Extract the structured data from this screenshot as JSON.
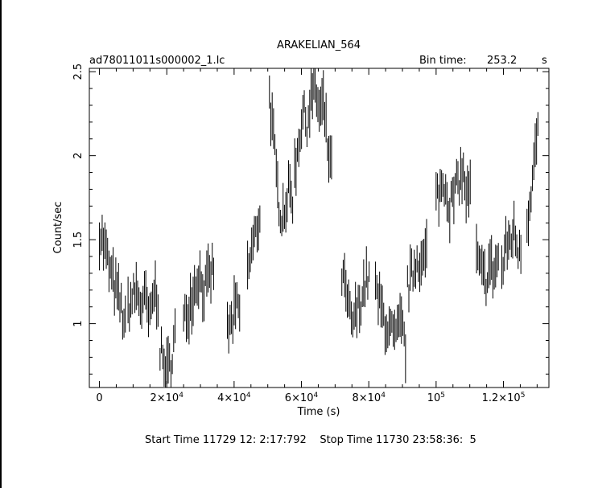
{
  "title": "ARAKELIAN_564",
  "file_name": "ad78011011s000002_1.lc",
  "bin_time_label": "Bin time:",
  "bin_time_value": "253.2",
  "bin_time_unit": "s",
  "footer": {
    "start_label": "Start Time",
    "start_value": "11729 12: 2:17:792",
    "stop_label": "Stop Time",
    "stop_value": "11730 23:58:36:  5"
  },
  "chart_data": {
    "type": "scatter",
    "style": "vertical error bars (light curve)",
    "xlabel": "Time (s)",
    "ylabel": "Count/sec",
    "xlim": [
      -3000,
      133500
    ],
    "ylim": [
      0.62,
      2.52
    ],
    "x_ticks": [
      {
        "value": 0,
        "base": "0",
        "exp": ""
      },
      {
        "value": 20000,
        "base": "2×10",
        "exp": "4"
      },
      {
        "value": 40000,
        "base": "4×10",
        "exp": "4"
      },
      {
        "value": 60000,
        "base": "6×10",
        "exp": "4"
      },
      {
        "value": 80000,
        "base": "8×10",
        "exp": "4"
      },
      {
        "value": 100000,
        "base": "10",
        "exp": "5"
      },
      {
        "value": 120000,
        "base": "1.2×10",
        "exp": "5"
      }
    ],
    "y_ticks": [
      {
        "value": 1,
        "label": "1"
      },
      {
        "value": 1.5,
        "label": "1.5"
      },
      {
        "value": 2,
        "label": "2"
      },
      {
        "value": 2.5,
        "label": "2.5"
      }
    ],
    "grid": false,
    "series": [
      {
        "segments": [
          {
            "x_start": 0,
            "x_end": 8000,
            "levels": [
              1.55,
              1.45,
              1.3,
              1.2,
              1.1,
              0.95
            ]
          },
          {
            "x_start": 8500,
            "x_end": 17500,
            "levels": [
              1.1,
              1.15,
              1.2,
              1.1,
              1.15,
              1.0,
              1.2,
              1.15
            ]
          },
          {
            "x_start": 18000,
            "x_end": 22500,
            "levels": [
              0.85,
              0.75,
              0.7,
              0.8,
              0.95
            ]
          },
          {
            "x_start": 25000,
            "x_end": 34000,
            "levels": [
              1.0,
              1.1,
              1.2,
              1.3,
              1.2,
              1.25,
              1.35
            ]
          },
          {
            "x_start": 38000,
            "x_end": 42000,
            "levels": [
              0.95,
              1.0,
              1.1,
              1.05
            ]
          },
          {
            "x_start": 44000,
            "x_end": 48000,
            "levels": [
              1.3,
              1.45,
              1.55,
              1.7
            ]
          },
          {
            "x_start": 50500,
            "x_end": 57500,
            "levels": [
              2.35,
              2.1,
              1.8,
              1.65,
              1.7,
              1.8,
              1.75
            ]
          },
          {
            "x_start": 58000,
            "x_end": 69000,
            "levels": [
              1.9,
              2.1,
              2.25,
              2.2,
              2.35,
              2.4,
              2.25,
              2.3,
              2.05,
              1.9
            ]
          },
          {
            "x_start": 72000,
            "x_end": 80500,
            "levels": [
              1.3,
              1.15,
              1.0,
              1.05,
              1.15,
              1.25,
              1.3
            ]
          },
          {
            "x_start": 82000,
            "x_end": 91000,
            "levels": [
              1.2,
              1.1,
              1.0,
              0.95,
              0.9,
              1.0,
              0.85
            ]
          },
          {
            "x_start": 91500,
            "x_end": 97500,
            "levels": [
              1.2,
              1.3,
              1.4,
              1.35,
              1.45
            ]
          },
          {
            "x_start": 100000,
            "x_end": 110500,
            "levels": [
              1.75,
              1.8,
              1.85,
              1.7,
              1.75,
              1.85,
              1.9,
              1.75,
              1.8
            ]
          },
          {
            "x_start": 112000,
            "x_end": 118500,
            "levels": [
              1.4,
              1.3,
              1.25,
              1.35,
              1.3,
              1.4
            ]
          },
          {
            "x_start": 119500,
            "x_end": 125500,
            "levels": [
              1.3,
              1.45,
              1.5,
              1.55,
              1.45,
              1.5
            ]
          },
          {
            "x_start": 127000,
            "x_end": 130500,
            "levels": [
              1.6,
              1.9,
              2.2
            ]
          }
        ]
      }
    ]
  }
}
